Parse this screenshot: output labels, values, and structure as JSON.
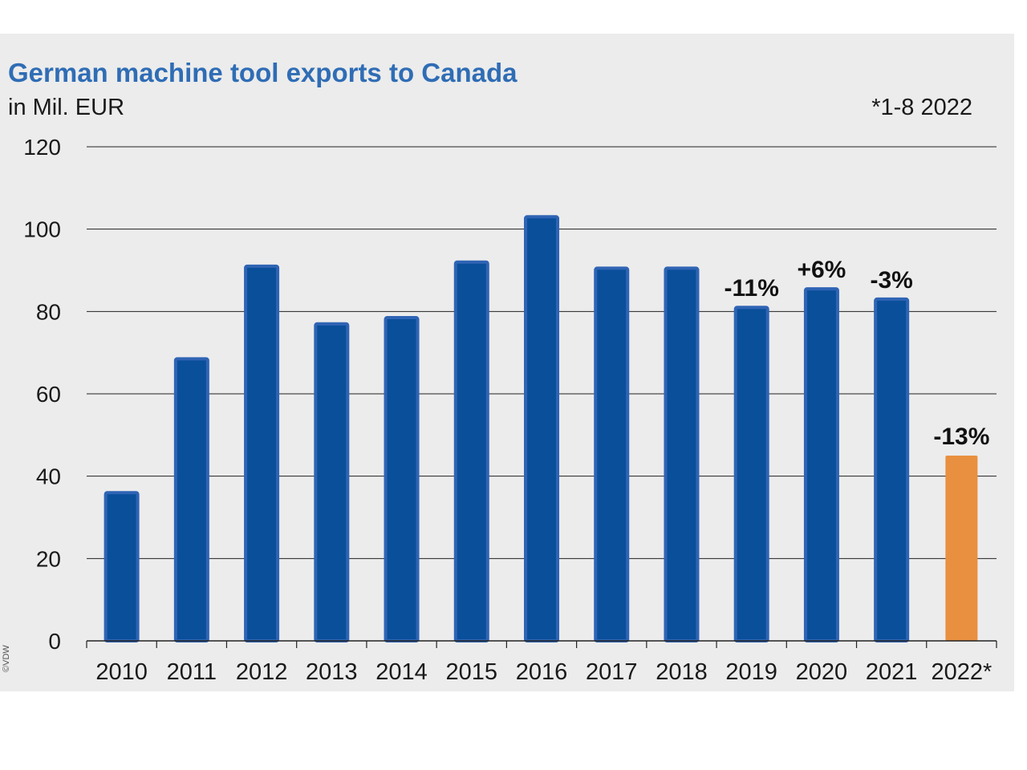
{
  "chart_data": {
    "type": "bar",
    "title": "German machine tool exports to Canada",
    "subtitle": "in Mil. EUR",
    "note": "*1-8 2022",
    "copyright": "©VDW",
    "categories": [
      "2010",
      "2011",
      "2012",
      "2013",
      "2014",
      "2015",
      "2016",
      "2017",
      "2018",
      "2019",
      "2020",
      "2021",
      "2022*"
    ],
    "values": [
      36,
      68.5,
      91,
      77,
      78.5,
      92,
      103,
      90.5,
      90.5,
      81,
      85.5,
      83,
      45
    ],
    "data_labels": [
      "",
      "",
      "",
      "",
      "",
      "",
      "",
      "",
      "",
      "-11%",
      "+6%",
      "-3%",
      "-13%"
    ],
    "ylim": [
      0,
      120
    ],
    "yticks": [
      0,
      20,
      40,
      60,
      80,
      100,
      120
    ],
    "grid": true,
    "colors": {
      "bar": "#0a4f9a",
      "bar_edge": "#2f64b4",
      "highlight_bar": "#e8903f",
      "title": "#2f6db5",
      "background": "#ececec"
    },
    "highlight_index": 12
  }
}
